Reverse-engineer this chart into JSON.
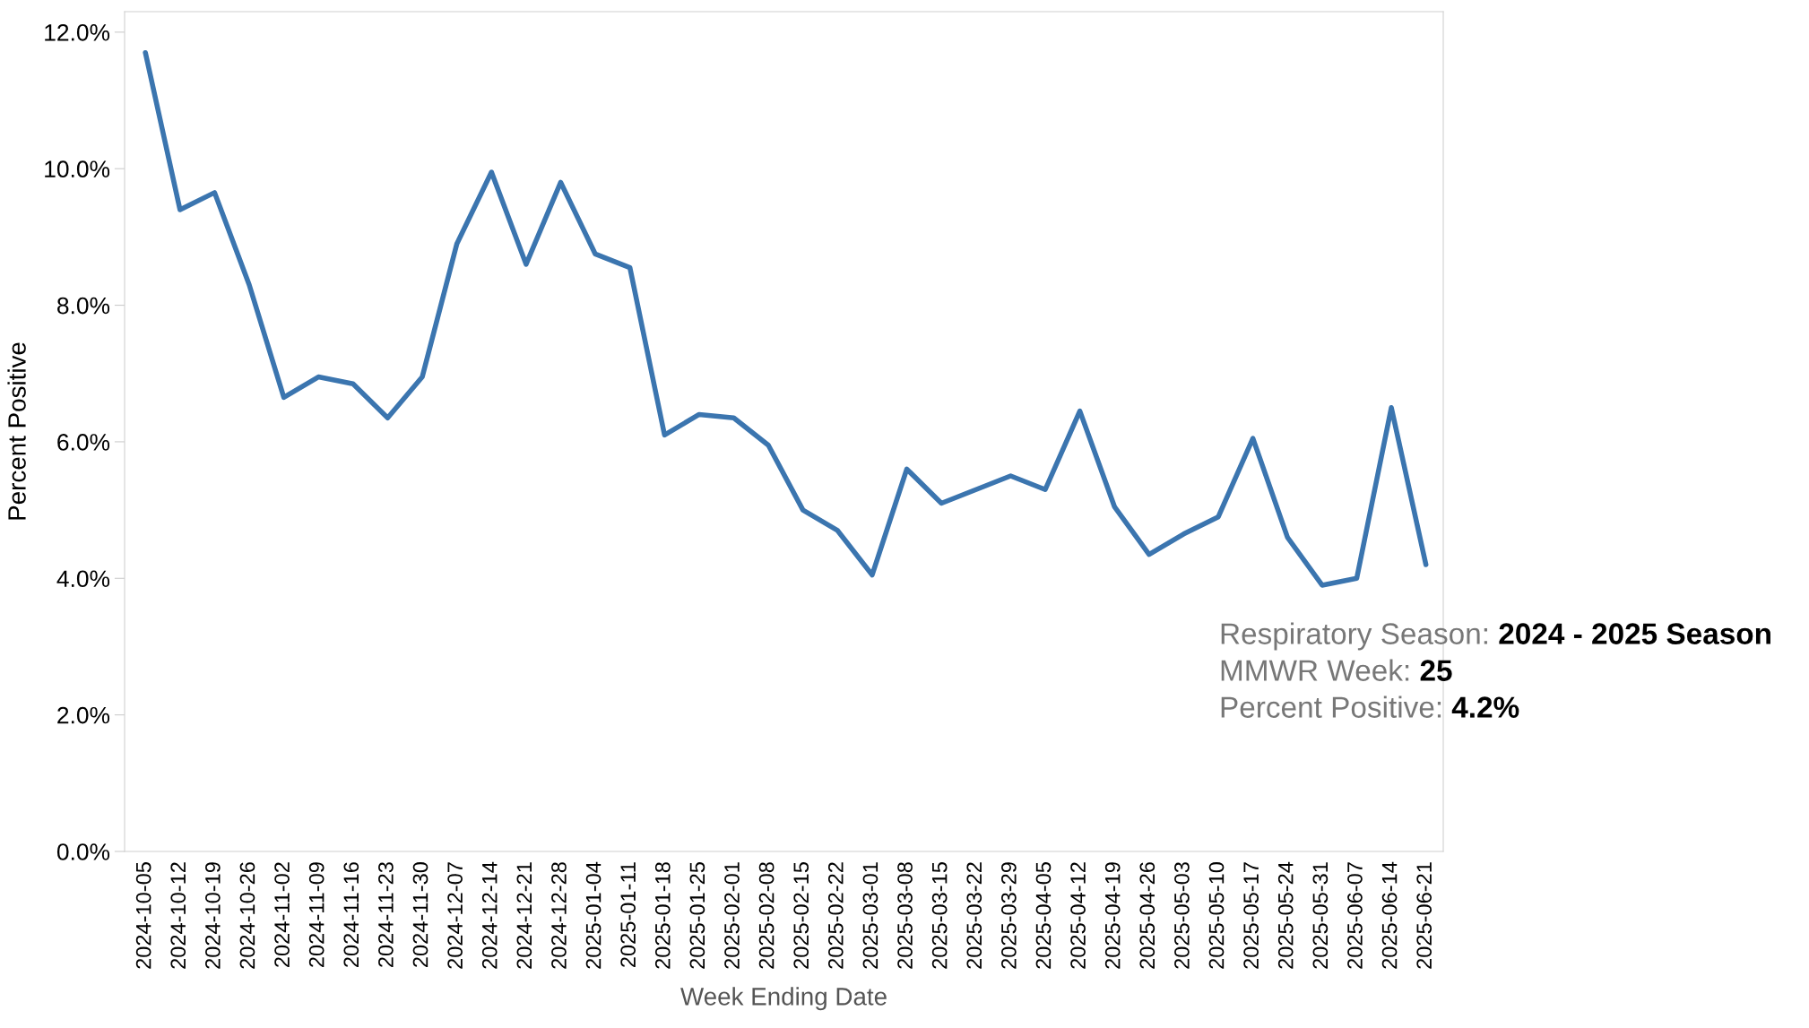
{
  "chart_data": {
    "type": "line",
    "xlabel": "Week Ending Date",
    "ylabel": "Percent Positive",
    "categories": [
      "2024-10-05",
      "2024-10-12",
      "2024-10-19",
      "2024-10-26",
      "2024-11-02",
      "2024-11-09",
      "2024-11-16",
      "2024-11-23",
      "2024-11-30",
      "2024-12-07",
      "2024-12-14",
      "2024-12-21",
      "2024-12-28",
      "2025-01-04",
      "2025-01-11",
      "2025-01-18",
      "2025-01-25",
      "2025-02-01",
      "2025-02-08",
      "2025-02-15",
      "2025-02-22",
      "2025-03-01",
      "2025-03-08",
      "2025-03-15",
      "2025-03-22",
      "2025-03-29",
      "2025-04-05",
      "2025-04-12",
      "2025-04-19",
      "2025-04-26",
      "2025-05-03",
      "2025-05-10",
      "2025-05-17",
      "2025-05-24",
      "2025-05-31",
      "2025-06-07",
      "2025-06-14",
      "2025-06-21"
    ],
    "series": [
      {
        "color": "#3b75af",
        "values": [
          11.7,
          9.4,
          9.65,
          8.3,
          6.65,
          6.95,
          6.85,
          6.35,
          6.95,
          8.9,
          9.95,
          8.6,
          9.8,
          8.75,
          8.55,
          6.1,
          6.4,
          6.35,
          5.95,
          5.0,
          4.7,
          4.05,
          5.6,
          5.1,
          5.3,
          5.5,
          5.3,
          6.45,
          5.05,
          4.35,
          4.65,
          4.9,
          6.05,
          4.6,
          3.9,
          4.0,
          6.5,
          4.2
        ]
      }
    ],
    "ylim": [
      0,
      12.3
    ],
    "yticks": [
      {
        "value": 0,
        "label": "0.0%"
      },
      {
        "value": 2,
        "label": "2.0%"
      },
      {
        "value": 4,
        "label": "4.0%"
      },
      {
        "value": 6,
        "label": "6.0%"
      },
      {
        "value": 8,
        "label": "8.0%"
      },
      {
        "value": 10,
        "label": "10.0%"
      },
      {
        "value": 12,
        "label": "12.0%"
      }
    ],
    "grid": false,
    "marker": "none",
    "line_style": "solid",
    "annotations": [
      "Respiratory Season: 2024 - 2025 Season",
      "MMWR Week: 25",
      "Percent Positive: 4.2%"
    ]
  }
}
